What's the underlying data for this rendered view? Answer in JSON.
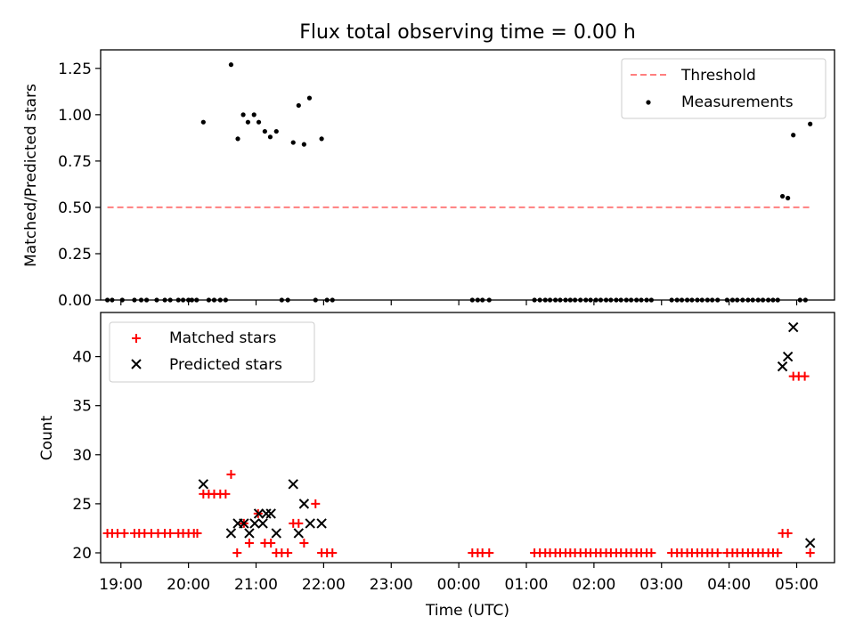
{
  "title": "Flux total observing time = 0.00 h",
  "colors": {
    "threshold": "#ff7f7f",
    "matched": "#ff0000",
    "predicted": "#000000",
    "measurement": "#000000",
    "axes": "#000000"
  },
  "chart_data": [
    {
      "id": "top",
      "type": "scatter",
      "ylabel": "Matched/Predicted stars",
      "ylim": [
        0.0,
        1.35
      ],
      "xlim_hours": [
        18.7,
        29.56
      ],
      "yticks": [
        0.0,
        0.25,
        0.5,
        0.75,
        1.0,
        1.25
      ],
      "ytick_labels": [
        "0.00",
        "0.25",
        "0.50",
        "0.75",
        "1.00",
        "1.25"
      ],
      "legend_position": "upper right",
      "legend": [
        "Threshold",
        "Measurements"
      ],
      "threshold": {
        "name": "Threshold",
        "value": 0.5,
        "x": [
          18.8,
          29.2
        ],
        "style": "dashed"
      },
      "series": [
        {
          "name": "Measurements",
          "marker": "dot",
          "points": [
            [
              20.22,
              0.96
            ],
            [
              20.63,
              1.27
            ],
            [
              20.73,
              0.87
            ],
            [
              20.81,
              1.0
            ],
            [
              20.88,
              0.96
            ],
            [
              20.97,
              1.0
            ],
            [
              21.04,
              0.96
            ],
            [
              21.13,
              0.91
            ],
            [
              21.21,
              0.88
            ],
            [
              21.3,
              0.91
            ],
            [
              21.55,
              0.85
            ],
            [
              21.63,
              1.05
            ],
            [
              21.71,
              0.84
            ],
            [
              21.79,
              1.09
            ],
            [
              21.97,
              0.87
            ],
            [
              28.79,
              0.56
            ],
            [
              28.87,
              0.55
            ],
            [
              28.95,
              0.89
            ],
            [
              29.2,
              0.95
            ],
            [
              18.8,
              0.0
            ],
            [
              18.87,
              0.0
            ],
            [
              19.02,
              0.0
            ],
            [
              19.2,
              0.0
            ],
            [
              19.3,
              0.0
            ],
            [
              19.38,
              0.0
            ],
            [
              19.53,
              0.0
            ],
            [
              19.65,
              0.0
            ],
            [
              19.73,
              0.0
            ],
            [
              19.85,
              0.0
            ],
            [
              19.92,
              0.0
            ],
            [
              20.0,
              0.0
            ],
            [
              20.05,
              0.0
            ],
            [
              20.12,
              0.0
            ],
            [
              20.3,
              0.0
            ],
            [
              20.38,
              0.0
            ],
            [
              20.47,
              0.0
            ],
            [
              20.55,
              0.0
            ],
            [
              21.38,
              0.0
            ],
            [
              21.47,
              0.0
            ],
            [
              21.88,
              0.0
            ],
            [
              22.05,
              0.0
            ],
            [
              22.13,
              0.0
            ],
            [
              24.2,
              0.0
            ],
            [
              24.28,
              0.0
            ],
            [
              24.35,
              0.0
            ],
            [
              24.45,
              0.0
            ],
            [
              25.12,
              0.0
            ],
            [
              25.2,
              0.0
            ],
            [
              25.28,
              0.0
            ],
            [
              25.35,
              0.0
            ],
            [
              25.43,
              0.0
            ],
            [
              25.5,
              0.0
            ],
            [
              25.58,
              0.0
            ],
            [
              25.65,
              0.0
            ],
            [
              25.72,
              0.0
            ],
            [
              25.8,
              0.0
            ],
            [
              25.88,
              0.0
            ],
            [
              25.95,
              0.0
            ],
            [
              26.03,
              0.0
            ],
            [
              26.1,
              0.0
            ],
            [
              26.18,
              0.0
            ],
            [
              26.25,
              0.0
            ],
            [
              26.33,
              0.0
            ],
            [
              26.4,
              0.0
            ],
            [
              26.48,
              0.0
            ],
            [
              26.55,
              0.0
            ],
            [
              26.63,
              0.0
            ],
            [
              26.7,
              0.0
            ],
            [
              26.78,
              0.0
            ],
            [
              26.85,
              0.0
            ],
            [
              27.15,
              0.0
            ],
            [
              27.23,
              0.0
            ],
            [
              27.3,
              0.0
            ],
            [
              27.38,
              0.0
            ],
            [
              27.45,
              0.0
            ],
            [
              27.53,
              0.0
            ],
            [
              27.6,
              0.0
            ],
            [
              27.68,
              0.0
            ],
            [
              27.75,
              0.0
            ],
            [
              27.83,
              0.0
            ],
            [
              27.97,
              0.0
            ],
            [
              28.05,
              0.0
            ],
            [
              28.12,
              0.0
            ],
            [
              28.2,
              0.0
            ],
            [
              28.28,
              0.0
            ],
            [
              28.35,
              0.0
            ],
            [
              28.43,
              0.0
            ],
            [
              28.5,
              0.0
            ],
            [
              28.58,
              0.0
            ],
            [
              28.65,
              0.0
            ],
            [
              28.72,
              0.0
            ],
            [
              29.05,
              0.0
            ],
            [
              29.13,
              0.0
            ]
          ]
        }
      ]
    },
    {
      "id": "bottom",
      "type": "scatter",
      "ylabel": "Count",
      "xlabel": "Time (UTC)",
      "ylim": [
        19.0,
        44.5
      ],
      "xlim_hours": [
        18.7,
        29.56
      ],
      "yticks": [
        20,
        25,
        30,
        35,
        40
      ],
      "ytick_labels": [
        "20",
        "25",
        "30",
        "35",
        "40"
      ],
      "xticks_hours": [
        19,
        20,
        21,
        22,
        23,
        24,
        25,
        26,
        27,
        28,
        29
      ],
      "xtick_labels": [
        "19:00",
        "20:00",
        "21:00",
        "22:00",
        "23:00",
        "00:00",
        "01:00",
        "02:00",
        "03:00",
        "04:00",
        "05:00"
      ],
      "legend_position": "upper left",
      "legend": [
        "Matched stars",
        "Predicted stars"
      ],
      "series": [
        {
          "name": "Matched stars",
          "marker": "plus",
          "points": [
            [
              18.8,
              22
            ],
            [
              18.87,
              22
            ],
            [
              18.95,
              22
            ],
            [
              19.05,
              22
            ],
            [
              19.2,
              22
            ],
            [
              19.27,
              22
            ],
            [
              19.35,
              22
            ],
            [
              19.45,
              22
            ],
            [
              19.55,
              22
            ],
            [
              19.65,
              22
            ],
            [
              19.73,
              22
            ],
            [
              19.85,
              22
            ],
            [
              19.92,
              22
            ],
            [
              20.0,
              22
            ],
            [
              20.08,
              22
            ],
            [
              20.13,
              22
            ],
            [
              20.22,
              26
            ],
            [
              20.3,
              26
            ],
            [
              20.38,
              26
            ],
            [
              20.47,
              26
            ],
            [
              20.55,
              26
            ],
            [
              20.63,
              28
            ],
            [
              20.72,
              20
            ],
            [
              20.82,
              23
            ],
            [
              20.9,
              21
            ],
            [
              21.03,
              24
            ],
            [
              21.13,
              21
            ],
            [
              21.22,
              21
            ],
            [
              21.3,
              20
            ],
            [
              21.38,
              20
            ],
            [
              21.47,
              20
            ],
            [
              21.55,
              23
            ],
            [
              21.63,
              23
            ],
            [
              21.71,
              21
            ],
            [
              21.88,
              25
            ],
            [
              21.97,
              20
            ],
            [
              22.05,
              20
            ],
            [
              22.13,
              20
            ],
            [
              24.2,
              20
            ],
            [
              24.28,
              20
            ],
            [
              24.35,
              20
            ],
            [
              24.45,
              20
            ],
            [
              25.12,
              20
            ],
            [
              25.2,
              20
            ],
            [
              25.28,
              20
            ],
            [
              25.35,
              20
            ],
            [
              25.43,
              20
            ],
            [
              25.5,
              20
            ],
            [
              25.58,
              20
            ],
            [
              25.65,
              20
            ],
            [
              25.72,
              20
            ],
            [
              25.8,
              20
            ],
            [
              25.88,
              20
            ],
            [
              25.95,
              20
            ],
            [
              26.03,
              20
            ],
            [
              26.1,
              20
            ],
            [
              26.18,
              20
            ],
            [
              26.25,
              20
            ],
            [
              26.33,
              20
            ],
            [
              26.4,
              20
            ],
            [
              26.48,
              20
            ],
            [
              26.55,
              20
            ],
            [
              26.63,
              20
            ],
            [
              26.7,
              20
            ],
            [
              26.78,
              20
            ],
            [
              26.85,
              20
            ],
            [
              27.15,
              20
            ],
            [
              27.23,
              20
            ],
            [
              27.3,
              20
            ],
            [
              27.38,
              20
            ],
            [
              27.45,
              20
            ],
            [
              27.53,
              20
            ],
            [
              27.6,
              20
            ],
            [
              27.68,
              20
            ],
            [
              27.75,
              20
            ],
            [
              27.83,
              20
            ],
            [
              27.97,
              20
            ],
            [
              28.05,
              20
            ],
            [
              28.12,
              20
            ],
            [
              28.2,
              20
            ],
            [
              28.28,
              20
            ],
            [
              28.35,
              20
            ],
            [
              28.43,
              20
            ],
            [
              28.5,
              20
            ],
            [
              28.58,
              20
            ],
            [
              28.65,
              20
            ],
            [
              28.72,
              20
            ],
            [
              28.79,
              22
            ],
            [
              28.87,
              22
            ],
            [
              28.95,
              38
            ],
            [
              29.03,
              38
            ],
            [
              29.12,
              38
            ],
            [
              29.2,
              20
            ]
          ]
        },
        {
          "name": "Predicted stars",
          "marker": "x",
          "points": [
            [
              20.22,
              27
            ],
            [
              20.63,
              22
            ],
            [
              20.73,
              23
            ],
            [
              20.82,
              23
            ],
            [
              20.9,
              22
            ],
            [
              20.98,
              23
            ],
            [
              21.04,
              24
            ],
            [
              21.1,
              23
            ],
            [
              21.15,
              24
            ],
            [
              21.22,
              24
            ],
            [
              21.3,
              22
            ],
            [
              21.55,
              27
            ],
            [
              21.63,
              22
            ],
            [
              21.71,
              25
            ],
            [
              21.8,
              23
            ],
            [
              21.97,
              23
            ],
            [
              28.79,
              39
            ],
            [
              28.87,
              40
            ],
            [
              28.95,
              43
            ],
            [
              29.2,
              21
            ]
          ]
        }
      ]
    }
  ]
}
